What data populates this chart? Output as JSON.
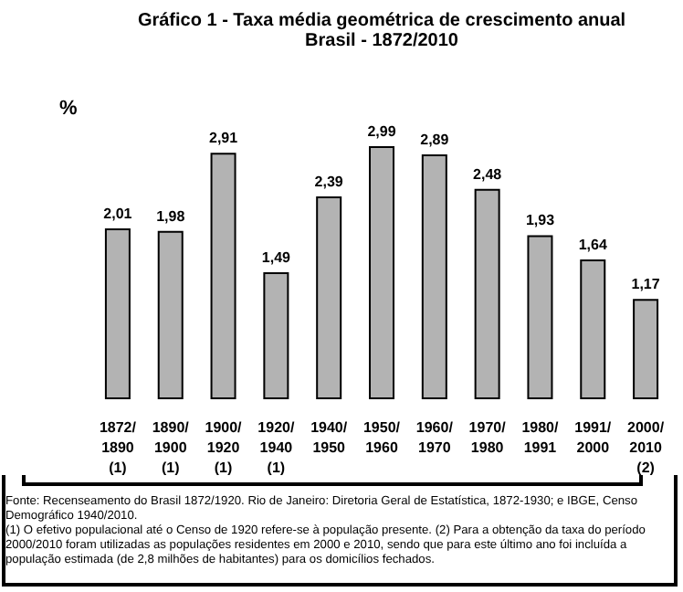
{
  "chart_data": {
    "type": "bar",
    "title": "Gráfico 1 - Taxa média geométrica de crescimento anual",
    "subtitle": "Brasil - 1872/2010",
    "ylabel": "%",
    "categories": [
      "1872/1890 (1)",
      "1890/1900 (1)",
      "1900/1920 (1)",
      "1920/1940 (1)",
      "1940/1950",
      "1950/1960",
      "1960/1970",
      "1970/1980",
      "1980/1991",
      "1991/2000",
      "2000/2010 (2)"
    ],
    "values": [
      2.01,
      1.98,
      2.91,
      1.49,
      2.39,
      2.99,
      2.89,
      2.48,
      1.93,
      1.64,
      1.17
    ],
    "value_labels": [
      "2,01",
      "1,98",
      "2,91",
      "1,49",
      "2,39",
      "2,99",
      "2,89",
      "2,48",
      "1,93",
      "1,64",
      "1,17"
    ],
    "color": "#b3b3b3",
    "annotations": [
      "Fonte: Recenseamento do Brasil 1872/1920. Rio de Janeiro: Diretoria Geral de Estatística, 1872-1930; e IBGE, Censo Demográfico 1940/2010.",
      "(1) O efetivo populacional até o Censo de 1920 refere-se à população presente. (2) Para a obtenção da taxa do período 2000/2010 foram utilizadas as populações residentes em 2000 e 2010, sendo que para este último ano foi incluída a população estimada (de 2,8 milhões de habitantes) para os domicílios fechados."
    ]
  }
}
